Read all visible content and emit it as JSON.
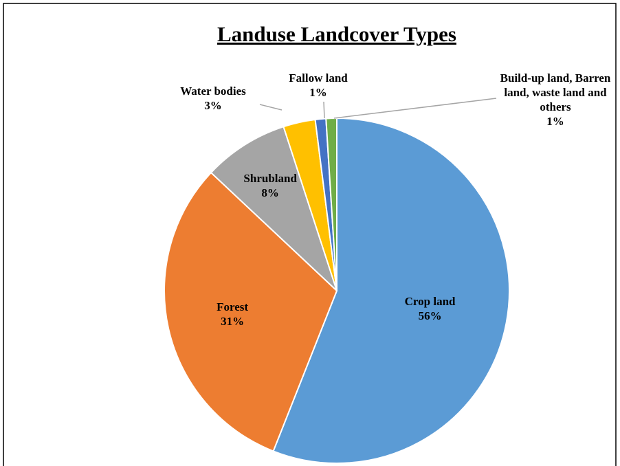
{
  "chart_data": {
    "type": "pie",
    "title": "Landuse Landcover Types",
    "categories": [
      "Crop land",
      "Forest",
      "Shrubland",
      "Water bodies",
      "Fallow land",
      "Build-up land, Barren land, waste land and others"
    ],
    "values": [
      56,
      31,
      8,
      3,
      1,
      1
    ],
    "value_labels": [
      "56%",
      "31%",
      "8%",
      "3%",
      "1%",
      "1%"
    ],
    "colors": [
      "#5b9bd5",
      "#ed7d31",
      "#a5a5a5",
      "#ffc000",
      "#4472c4",
      "#70ad47"
    ]
  }
}
